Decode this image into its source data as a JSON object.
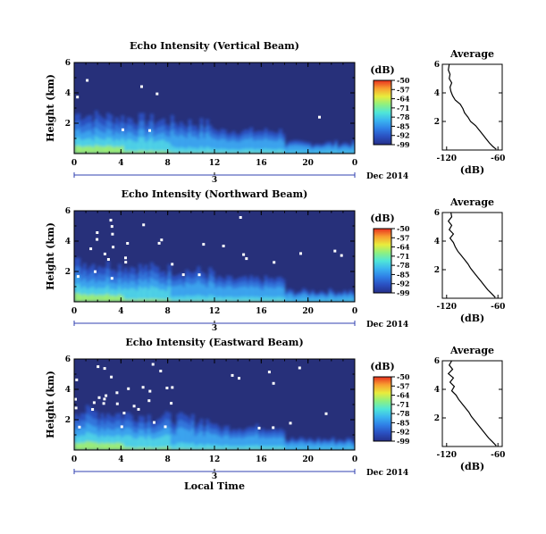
{
  "chart_data": [
    {
      "type": "heatmap",
      "title": "Echo Intensity (Vertical Beam)",
      "ylabel": "Height (km)",
      "x_ticks": [
        "0",
        "4",
        "8",
        "12",
        "16",
        "20",
        "0"
      ],
      "y_ticks": [
        "2",
        "4",
        "6"
      ],
      "xlim_hours": [
        0,
        24
      ],
      "ylim_km": [
        0,
        6
      ],
      "day_label": "3",
      "month_label": "Dec 2014",
      "colorbar": {
        "unit": "(dB)",
        "ticks": [
          "-50",
          "-57",
          "-64",
          "-71",
          "-78",
          "-85",
          "-92",
          "-99"
        ],
        "range_db": [
          -99,
          -50
        ],
        "colors": [
          "#252f88",
          "#2a4fc0",
          "#2f7fe6",
          "#3ab4f0",
          "#4fe6d8",
          "#8ef080",
          "#e8ec3c",
          "#f8a030",
          "#e83020"
        ]
      },
      "profile": {
        "title": "Average",
        "xlabel": "(dB)",
        "x_ticks": [
          "-120",
          "-60"
        ],
        "y_ticks": [
          "2",
          "4",
          "6"
        ],
        "xlim_db": [
          -125,
          -55
        ],
        "ylim_km": [
          0,
          6
        ],
        "points": [
          [
            -117,
            6.0
          ],
          [
            -118,
            5.6
          ],
          [
            -116,
            5.3
          ],
          [
            -117,
            5.0
          ],
          [
            -114,
            4.7
          ],
          [
            -116,
            4.4
          ],
          [
            -115,
            4.1
          ],
          [
            -113,
            3.8
          ],
          [
            -110,
            3.5
          ],
          [
            -104,
            3.2
          ],
          [
            -101,
            2.9
          ],
          [
            -99,
            2.6
          ],
          [
            -95,
            2.3
          ],
          [
            -92,
            2.0
          ],
          [
            -86,
            1.7
          ],
          [
            -82,
            1.4
          ],
          [
            -78,
            1.1
          ],
          [
            -74,
            0.8
          ],
          [
            -70,
            0.5
          ],
          [
            -66,
            0.25
          ],
          [
            -62,
            0.05
          ]
        ]
      }
    },
    {
      "type": "heatmap",
      "title": "Echo Intensity (Northward Beam)",
      "ylabel": "Height (km)",
      "x_ticks": [
        "0",
        "4",
        "8",
        "12",
        "16",
        "20",
        "0"
      ],
      "y_ticks": [
        "2",
        "4",
        "6"
      ],
      "xlim_hours": [
        0,
        24
      ],
      "ylim_km": [
        0,
        6
      ],
      "day_label": "3",
      "month_label": "Dec 2014",
      "colorbar": {
        "unit": "(dB)",
        "ticks": [
          "-50",
          "-57",
          "-64",
          "-71",
          "-78",
          "-85",
          "-92",
          "-99"
        ],
        "range_db": [
          -99,
          -50
        ],
        "colors": [
          "#252f88",
          "#2a4fc0",
          "#2f7fe6",
          "#3ab4f0",
          "#4fe6d8",
          "#8ef080",
          "#e8ec3c",
          "#f8a030",
          "#e83020"
        ]
      },
      "profile": {
        "title": "Average",
        "xlabel": "(dB)",
        "x_ticks": [
          "-120",
          "-60"
        ],
        "y_ticks": [
          "2",
          "4",
          "6"
        ],
        "xlim_db": [
          -125,
          -55
        ],
        "ylim_km": [
          0,
          6
        ],
        "points": [
          [
            -115,
            6.0
          ],
          [
            -114,
            5.7
          ],
          [
            -118,
            5.4
          ],
          [
            -114,
            5.1
          ],
          [
            -117,
            4.8
          ],
          [
            -112,
            4.5
          ],
          [
            -116,
            4.2
          ],
          [
            -112,
            3.9
          ],
          [
            -110,
            3.6
          ],
          [
            -107,
            3.3
          ],
          [
            -103,
            3.0
          ],
          [
            -99,
            2.7
          ],
          [
            -95,
            2.4
          ],
          [
            -92,
            2.1
          ],
          [
            -88,
            1.8
          ],
          [
            -84,
            1.5
          ],
          [
            -80,
            1.2
          ],
          [
            -76,
            0.9
          ],
          [
            -72,
            0.6
          ],
          [
            -67,
            0.3
          ],
          [
            -63,
            0.05
          ]
        ]
      }
    },
    {
      "type": "heatmap",
      "title": "Echo Intensity (Eastward Beam)",
      "ylabel": "Height (km)",
      "x_ticks": [
        "0",
        "4",
        "8",
        "12",
        "16",
        "20",
        "0"
      ],
      "y_ticks": [
        "2",
        "4",
        "6"
      ],
      "xlim_hours": [
        0,
        24
      ],
      "ylim_km": [
        0,
        6
      ],
      "day_label": "3",
      "month_label": "Dec 2014",
      "colorbar": {
        "unit": "(dB)",
        "ticks": [
          "-50",
          "-57",
          "-64",
          "-71",
          "-78",
          "-85",
          "-92",
          "-99"
        ],
        "range_db": [
          -99,
          -50
        ],
        "colors": [
          "#252f88",
          "#2a4fc0",
          "#2f7fe6",
          "#3ab4f0",
          "#4fe6d8",
          "#8ef080",
          "#e8ec3c",
          "#f8a030",
          "#e83020"
        ]
      },
      "profile": {
        "title": "Average",
        "xlabel": "(dB)",
        "x_ticks": [
          "-120",
          "-60"
        ],
        "y_ticks": [
          "2",
          "4",
          "6"
        ],
        "xlim_db": [
          -125,
          -55
        ],
        "ylim_km": [
          0,
          6
        ],
        "points": [
          [
            -114,
            6.0
          ],
          [
            -117,
            5.7
          ],
          [
            -113,
            5.4
          ],
          [
            -118,
            5.1
          ],
          [
            -112,
            4.8
          ],
          [
            -116,
            4.5
          ],
          [
            -111,
            4.2
          ],
          [
            -114,
            3.9
          ],
          [
            -109,
            3.6
          ],
          [
            -106,
            3.3
          ],
          [
            -102,
            3.0
          ],
          [
            -98,
            2.7
          ],
          [
            -94,
            2.4
          ],
          [
            -91,
            2.1
          ],
          [
            -87,
            1.8
          ],
          [
            -83,
            1.5
          ],
          [
            -79,
            1.2
          ],
          [
            -75,
            0.9
          ],
          [
            -71,
            0.6
          ],
          [
            -66,
            0.3
          ],
          [
            -62,
            0.05
          ]
        ]
      }
    }
  ],
  "footer": {
    "xlabel": "Local Time"
  }
}
